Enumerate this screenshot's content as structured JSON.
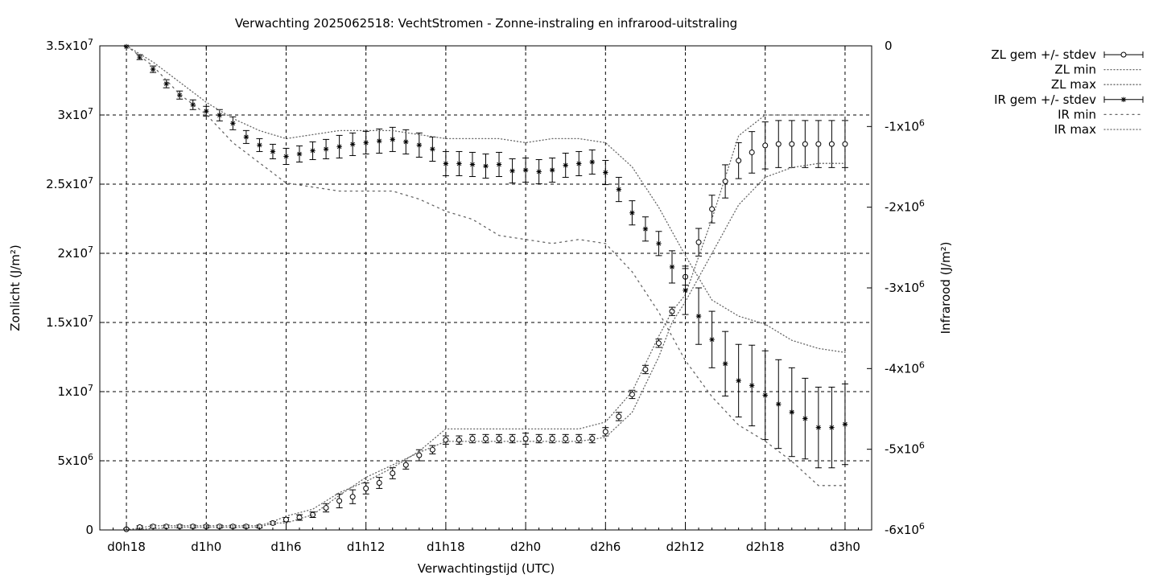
{
  "chart_data": {
    "type": "line",
    "title": "Verwachting 2025062518: VechtStromen - Zonne-instraling en infrarood-uitstraling",
    "xlabel": "Verwachtingstijd (UTC)",
    "ylabel": "Zonlicht (J/m²)",
    "y2label": "Infrarood (J/m²)",
    "x_unit": "hours since d0h0",
    "xlim": [
      16,
      74
    ],
    "x_ticks": [
      {
        "x": 18,
        "label": "d0h18"
      },
      {
        "x": 24,
        "label": "d1h0"
      },
      {
        "x": 30,
        "label": "d1h6"
      },
      {
        "x": 36,
        "label": "d1h12"
      },
      {
        "x": 42,
        "label": "d1h18"
      },
      {
        "x": 48,
        "label": "d2h0"
      },
      {
        "x": 54,
        "label": "d2h6"
      },
      {
        "x": 60,
        "label": "d2h12"
      },
      {
        "x": 66,
        "label": "d2h18"
      },
      {
        "x": 72,
        "label": "d3h0"
      }
    ],
    "ylim": [
      0,
      35000000
    ],
    "y_ticks": [
      {
        "v": 0,
        "m": "0",
        "e": ""
      },
      {
        "v": 5000000,
        "m": "5x10",
        "e": "6"
      },
      {
        "v": 10000000,
        "m": "1x10",
        "e": "7"
      },
      {
        "v": 15000000,
        "m": "1.5x10",
        "e": "7"
      },
      {
        "v": 20000000,
        "m": "2x10",
        "e": "7"
      },
      {
        "v": 25000000,
        "m": "2.5x10",
        "e": "7"
      },
      {
        "v": 30000000,
        "m": "3x10",
        "e": "7"
      },
      {
        "v": 35000000,
        "m": "3.5x10",
        "e": "7"
      }
    ],
    "y2lim": [
      -6000000,
      0
    ],
    "y2_ticks": [
      {
        "v": 0,
        "m": "0",
        "e": ""
      },
      {
        "v": -1000000,
        "m": "-1x10",
        "e": "6"
      },
      {
        "v": -2000000,
        "m": "-2x10",
        "e": "6"
      },
      {
        "v": -3000000,
        "m": "-3x10",
        "e": "6"
      },
      {
        "v": -4000000,
        "m": "-4x10",
        "e": "6"
      },
      {
        "v": -5000000,
        "m": "-5x10",
        "e": "6"
      },
      {
        "v": -6000000,
        "m": "-6x10",
        "e": "6"
      }
    ],
    "grid": true,
    "legend_position": "outside-top-right",
    "legend": [
      "ZL gem +/- stdev",
      "ZL min",
      "ZL max",
      "IR gem +/- stdev",
      "IR min",
      "IR max"
    ],
    "series": [
      {
        "name": "ZL gem +/- stdev",
        "axis": "y",
        "x": [
          18,
          19,
          20,
          21,
          22,
          23,
          24,
          25,
          26,
          27,
          28,
          29,
          30,
          31,
          32,
          33,
          34,
          35,
          36,
          37,
          38,
          39,
          40,
          41,
          42,
          43,
          44,
          45,
          46,
          47,
          48,
          49,
          50,
          51,
          52,
          53,
          54,
          55,
          56,
          57,
          58,
          59,
          60,
          61,
          62,
          63,
          64,
          65,
          66,
          67,
          68,
          69,
          70,
          71,
          72
        ],
        "mean": [
          50000,
          200000,
          250000,
          250000,
          250000,
          250000,
          250000,
          250000,
          250000,
          250000,
          250000,
          500000,
          750000,
          900000,
          1100000,
          1600000,
          2100000,
          2400000,
          3000000,
          3400000,
          4100000,
          4700000,
          5400000,
          5800000,
          6500000,
          6500000,
          6600000,
          6600000,
          6600000,
          6600000,
          6600000,
          6600000,
          6600000,
          6600000,
          6600000,
          6600000,
          7100000,
          8200000,
          9800000,
          11600000,
          13500000,
          15800000,
          18300000,
          20800000,
          23200000,
          25200000,
          26700000,
          27300000,
          27800000,
          27900000,
          27900000,
          27900000,
          27900000,
          27900000,
          27900000
        ],
        "stdev": [
          50000,
          100000,
          100000,
          100000,
          100000,
          100000,
          100000,
          100000,
          100000,
          100000,
          100000,
          100000,
          150000,
          200000,
          200000,
          300000,
          500000,
          500000,
          400000,
          400000,
          400000,
          300000,
          400000,
          300000,
          300000,
          300000,
          300000,
          300000,
          300000,
          300000,
          400000,
          300000,
          300000,
          300000,
          300000,
          300000,
          300000,
          300000,
          300000,
          300000,
          300000,
          300000,
          600000,
          1000000,
          1000000,
          1200000,
          1300000,
          1500000,
          1700000,
          1700000,
          1700000,
          1700000,
          1700000,
          1700000,
          1700000
        ]
      },
      {
        "name": "ZL min",
        "axis": "y",
        "x": [
          18,
          20,
          22,
          24,
          26,
          28,
          29,
          30,
          32,
          34,
          36,
          38,
          40,
          42,
          44,
          46,
          48,
          50,
          52,
          54,
          56,
          58,
          59,
          60,
          62,
          64,
          66,
          68,
          70,
          72
        ],
        "values": [
          0,
          100000,
          200000,
          200000,
          200000,
          200000,
          500000,
          500000,
          1100000,
          2500000,
          3800000,
          4700000,
          5600000,
          6400000,
          6400000,
          6400000,
          6400000,
          6400000,
          6400000,
          6700000,
          8500000,
          12500000,
          15000000,
          16500000,
          20000000,
          23500000,
          25500000,
          26200000,
          26500000,
          26500000
        ]
      },
      {
        "name": "ZL max",
        "axis": "y",
        "x": [
          18,
          20,
          22,
          24,
          26,
          28,
          29,
          30,
          32,
          34,
          36,
          38,
          40,
          42,
          44,
          46,
          48,
          50,
          52,
          54,
          56,
          58,
          59,
          60,
          62,
          64,
          66,
          68,
          70,
          72
        ],
        "values": [
          0,
          300000,
          300000,
          300000,
          300000,
          300000,
          600000,
          1000000,
          1500000,
          2700000,
          3500000,
          4500000,
          5700000,
          7300000,
          7300000,
          7300000,
          7300000,
          7300000,
          7300000,
          7800000,
          10000000,
          14000000,
          15800000,
          17000000,
          22500000,
          28500000,
          30000000,
          30000000,
          30000000,
          30000000
        ]
      },
      {
        "name": "IR gem +/- stdev",
        "axis": "y2",
        "x": [
          18,
          19,
          20,
          21,
          22,
          23,
          24,
          25,
          26,
          27,
          28,
          29,
          30,
          31,
          32,
          33,
          34,
          35,
          36,
          37,
          38,
          39,
          40,
          41,
          42,
          43,
          44,
          45,
          46,
          47,
          48,
          49,
          50,
          51,
          52,
          53,
          54,
          55,
          56,
          57,
          58,
          59,
          60,
          61,
          62,
          63,
          64,
          65,
          66,
          67,
          68,
          69,
          70,
          71,
          72
        ],
        "mean": [
          -10000,
          -140000,
          -290000,
          -470000,
          -610000,
          -730000,
          -810000,
          -860000,
          -960000,
          -1130000,
          -1230000,
          -1310000,
          -1370000,
          -1340000,
          -1300000,
          -1280000,
          -1250000,
          -1220000,
          -1200000,
          -1180000,
          -1160000,
          -1190000,
          -1230000,
          -1280000,
          -1460000,
          -1460000,
          -1470000,
          -1490000,
          -1470000,
          -1550000,
          -1540000,
          -1560000,
          -1540000,
          -1480000,
          -1460000,
          -1440000,
          -1570000,
          -1780000,
          -2070000,
          -2270000,
          -2450000,
          -2740000,
          -3030000,
          -3350000,
          -3640000,
          -3940000,
          -4150000,
          -4210000,
          -4330000,
          -4440000,
          -4540000,
          -4620000,
          -4730000,
          -4730000,
          -4690000
        ],
        "stdev": [
          0,
          30000,
          40000,
          50000,
          50000,
          60000,
          60000,
          70000,
          80000,
          80000,
          80000,
          90000,
          100000,
          100000,
          110000,
          120000,
          140000,
          140000,
          140000,
          150000,
          150000,
          150000,
          150000,
          150000,
          150000,
          150000,
          150000,
          150000,
          150000,
          150000,
          150000,
          150000,
          150000,
          150000,
          150000,
          150000,
          150000,
          150000,
          150000,
          150000,
          150000,
          200000,
          300000,
          350000,
          350000,
          400000,
          450000,
          500000,
          550000,
          550000,
          550000,
          500000,
          500000,
          500000,
          500000
        ]
      },
      {
        "name": "IR min",
        "axis": "y2",
        "x": [
          18,
          20,
          22,
          24,
          26,
          28,
          30,
          32,
          34,
          36,
          38,
          40,
          42,
          44,
          46,
          48,
          50,
          52,
          54,
          56,
          58,
          60,
          62,
          64,
          66,
          68,
          70,
          72
        ],
        "values": [
          0,
          -250000,
          -600000,
          -850000,
          -1200000,
          -1450000,
          -1700000,
          -1750000,
          -1800000,
          -1800000,
          -1800000,
          -1900000,
          -2050000,
          -2150000,
          -2350000,
          -2400000,
          -2450000,
          -2400000,
          -2450000,
          -2800000,
          -3300000,
          -3900000,
          -4350000,
          -4700000,
          -4900000,
          -5150000,
          -5450000,
          -5450000
        ]
      },
      {
        "name": "IR max",
        "axis": "y2",
        "x": [
          18,
          20,
          22,
          24,
          26,
          28,
          30,
          32,
          34,
          36,
          38,
          40,
          42,
          44,
          46,
          48,
          50,
          52,
          54,
          56,
          58,
          60,
          62,
          64,
          66,
          68,
          70,
          72
        ],
        "values": [
          0,
          -200000,
          -450000,
          -700000,
          -900000,
          -1050000,
          -1150000,
          -1100000,
          -1050000,
          -1050000,
          -1050000,
          -1100000,
          -1150000,
          -1150000,
          -1150000,
          -1200000,
          -1150000,
          -1150000,
          -1200000,
          -1500000,
          -2000000,
          -2600000,
          -3150000,
          -3350000,
          -3450000,
          -3650000,
          -3750000,
          -3800000
        ]
      }
    ]
  }
}
